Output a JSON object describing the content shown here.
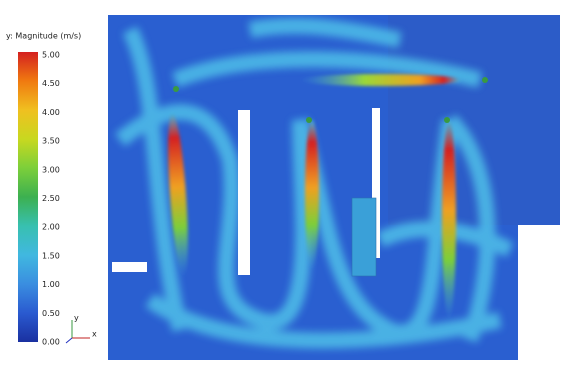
{
  "legend": {
    "title": "y: Magnitude (m/s)",
    "ticks": [
      "5.00",
      "4.50",
      "4.00",
      "3.50",
      "3.00",
      "2.50",
      "2.00",
      "1.50",
      "1.00",
      "0.50",
      "0.00"
    ]
  },
  "axes": {
    "y": "y",
    "x": "x"
  }
}
